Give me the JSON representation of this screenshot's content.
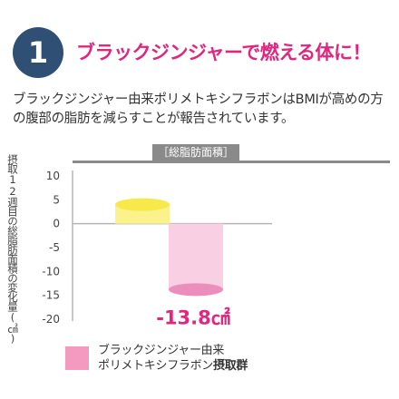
{
  "header": {
    "number": "1",
    "headline": "ブラックジンジャーで燃える体に！"
  },
  "description": "ブラックジンジャー由来ポリメトキシフラボンはBMIが高めの方の腹部の脂肪を減らすことが報告されています。",
  "legend": {
    "line1": "ブラックジンジャー由来",
    "line2_prefix": "ポリメトキシフラボン",
    "line2_bold": "摂取群",
    "color": "#f49ac1"
  },
  "chart_data": {
    "type": "bar",
    "title": "［総脂肪面積］",
    "ylabel": "摂取12週目の総脂肪面積の変化量(㎠)",
    "ylim": [
      -20,
      10
    ],
    "yticks": [
      10,
      5,
      0,
      -5,
      -10,
      -15,
      -20
    ],
    "series": [
      {
        "values": [
          4
        ],
        "color": "#fbf28c"
      },
      {
        "values": [
          -13.8
        ],
        "color": "#f8cfe3"
      }
    ],
    "annotation": "-13.8㎠",
    "grid": false
  }
}
